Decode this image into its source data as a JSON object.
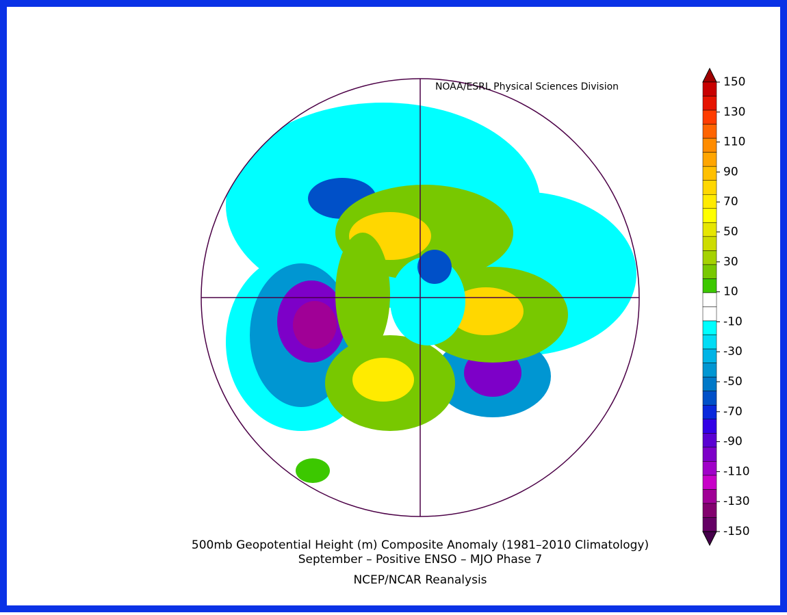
{
  "header": {
    "credit": "NOAA/ESRL Physical Sciences Division"
  },
  "colorbar": {
    "ticks": [
      150,
      130,
      110,
      90,
      70,
      50,
      30,
      10,
      -10,
      -30,
      -50,
      -70,
      -90,
      -110,
      -130,
      -150
    ],
    "colors": [
      "#a00000",
      "#c80000",
      "#e61400",
      "#ff3c00",
      "#ff6400",
      "#ff8c00",
      "#ffa500",
      "#ffc000",
      "#ffd700",
      "#ffeb00",
      "#ffff00",
      "#e6e600",
      "#cddc00",
      "#a5d200",
      "#78c800",
      "#3cc800",
      "#ffffff",
      "#ffffff",
      "#00ffff",
      "#00dcf5",
      "#00b4e6",
      "#0096d2",
      "#0078c8",
      "#0050c8",
      "#0a28dc",
      "#3200e6",
      "#5a00d2",
      "#7d00c8",
      "#a000c8",
      "#c800c8",
      "#a00096",
      "#82006e",
      "#640064",
      "#46004b"
    ]
  },
  "footer": {
    "title": "500mb Geopotential Height (m) Composite Anomaly (1981–2010 Climatology)",
    "subtitle": "September – Positive ENSO – MJO Phase 7",
    "source": "NCEP/NCAR Reanalysis"
  }
}
